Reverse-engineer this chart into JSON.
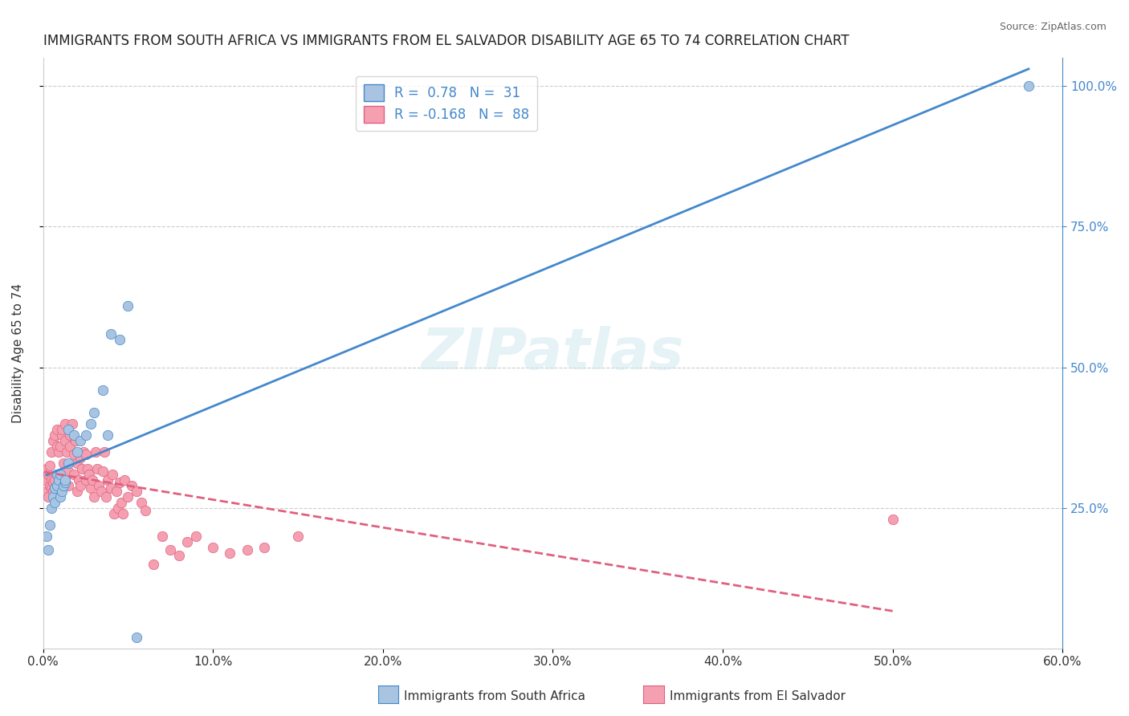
{
  "title": "IMMIGRANTS FROM SOUTH AFRICA VS IMMIGRANTS FROM EL SALVADOR DISABILITY AGE 65 TO 74 CORRELATION CHART",
  "source": "Source: ZipAtlas.com",
  "ylabel": "Disability Age 65 to 74",
  "ylabel_right_ticks": [
    "25.0%",
    "50.0%",
    "75.0%",
    "100.0%"
  ],
  "ylabel_right_vals": [
    0.25,
    0.5,
    0.75,
    1.0
  ],
  "xlim": [
    0.0,
    0.6
  ],
  "ylim": [
    0.0,
    1.05
  ],
  "R_blue": 0.78,
  "N_blue": 31,
  "R_pink": -0.168,
  "N_pink": 88,
  "legend_label_blue": "Immigrants from South Africa",
  "legend_label_pink": "Immigrants from El Salvador",
  "blue_color": "#a8c4e0",
  "pink_color": "#f4a0b0",
  "line_blue": "#4488cc",
  "line_pink": "#e06080",
  "watermark": "ZIPatlas",
  "blue_scatter_x": [
    0.002,
    0.003,
    0.004,
    0.005,
    0.006,
    0.007,
    0.007,
    0.008,
    0.008,
    0.009,
    0.01,
    0.01,
    0.011,
    0.012,
    0.013,
    0.013,
    0.015,
    0.015,
    0.018,
    0.02,
    0.022,
    0.025,
    0.028,
    0.03,
    0.035,
    0.038,
    0.04,
    0.045,
    0.05,
    0.055,
    0.58
  ],
  "blue_scatter_y": [
    0.2,
    0.175,
    0.22,
    0.25,
    0.27,
    0.285,
    0.26,
    0.31,
    0.29,
    0.3,
    0.27,
    0.31,
    0.28,
    0.29,
    0.295,
    0.3,
    0.33,
    0.39,
    0.38,
    0.35,
    0.37,
    0.38,
    0.4,
    0.42,
    0.46,
    0.38,
    0.56,
    0.55,
    0.61,
    0.02,
    1.0
  ],
  "pink_scatter_x": [
    0.001,
    0.002,
    0.002,
    0.003,
    0.003,
    0.004,
    0.004,
    0.005,
    0.005,
    0.005,
    0.006,
    0.006,
    0.006,
    0.007,
    0.007,
    0.007,
    0.008,
    0.008,
    0.008,
    0.009,
    0.009,
    0.01,
    0.01,
    0.01,
    0.011,
    0.011,
    0.012,
    0.012,
    0.013,
    0.013,
    0.014,
    0.014,
    0.015,
    0.015,
    0.016,
    0.016,
    0.017,
    0.018,
    0.018,
    0.019,
    0.02,
    0.02,
    0.021,
    0.022,
    0.022,
    0.023,
    0.024,
    0.025,
    0.025,
    0.026,
    0.027,
    0.028,
    0.029,
    0.03,
    0.031,
    0.032,
    0.033,
    0.034,
    0.035,
    0.036,
    0.037,
    0.038,
    0.04,
    0.041,
    0.042,
    0.043,
    0.044,
    0.045,
    0.046,
    0.047,
    0.048,
    0.05,
    0.052,
    0.055,
    0.058,
    0.06,
    0.065,
    0.07,
    0.075,
    0.08,
    0.085,
    0.09,
    0.1,
    0.11,
    0.12,
    0.13,
    0.15,
    0.5
  ],
  "pink_scatter_y": [
    0.3,
    0.28,
    0.32,
    0.27,
    0.31,
    0.29,
    0.325,
    0.285,
    0.3,
    0.35,
    0.28,
    0.295,
    0.37,
    0.285,
    0.3,
    0.38,
    0.31,
    0.36,
    0.39,
    0.3,
    0.35,
    0.28,
    0.31,
    0.36,
    0.38,
    0.39,
    0.295,
    0.33,
    0.37,
    0.4,
    0.31,
    0.35,
    0.29,
    0.315,
    0.36,
    0.38,
    0.4,
    0.31,
    0.345,
    0.37,
    0.33,
    0.28,
    0.3,
    0.34,
    0.29,
    0.32,
    0.35,
    0.3,
    0.345,
    0.32,
    0.31,
    0.285,
    0.3,
    0.27,
    0.35,
    0.32,
    0.29,
    0.28,
    0.315,
    0.35,
    0.27,
    0.3,
    0.285,
    0.31,
    0.24,
    0.28,
    0.25,
    0.295,
    0.26,
    0.24,
    0.3,
    0.27,
    0.29,
    0.28,
    0.26,
    0.245,
    0.15,
    0.2,
    0.175,
    0.165,
    0.19,
    0.2,
    0.18,
    0.17,
    0.175,
    0.18,
    0.2,
    0.23
  ]
}
